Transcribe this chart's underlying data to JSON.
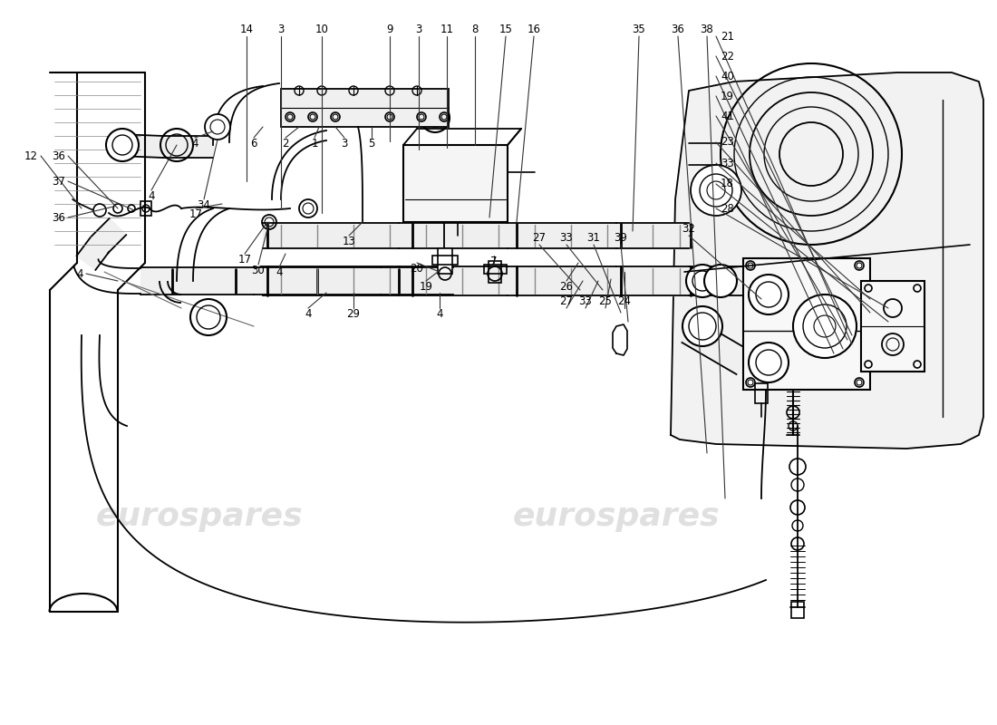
{
  "bg_color": "#ffffff",
  "line_color": "#000000",
  "wm_color": "#cccccc",
  "figsize": [
    11.0,
    8.0
  ],
  "dpi": 100
}
